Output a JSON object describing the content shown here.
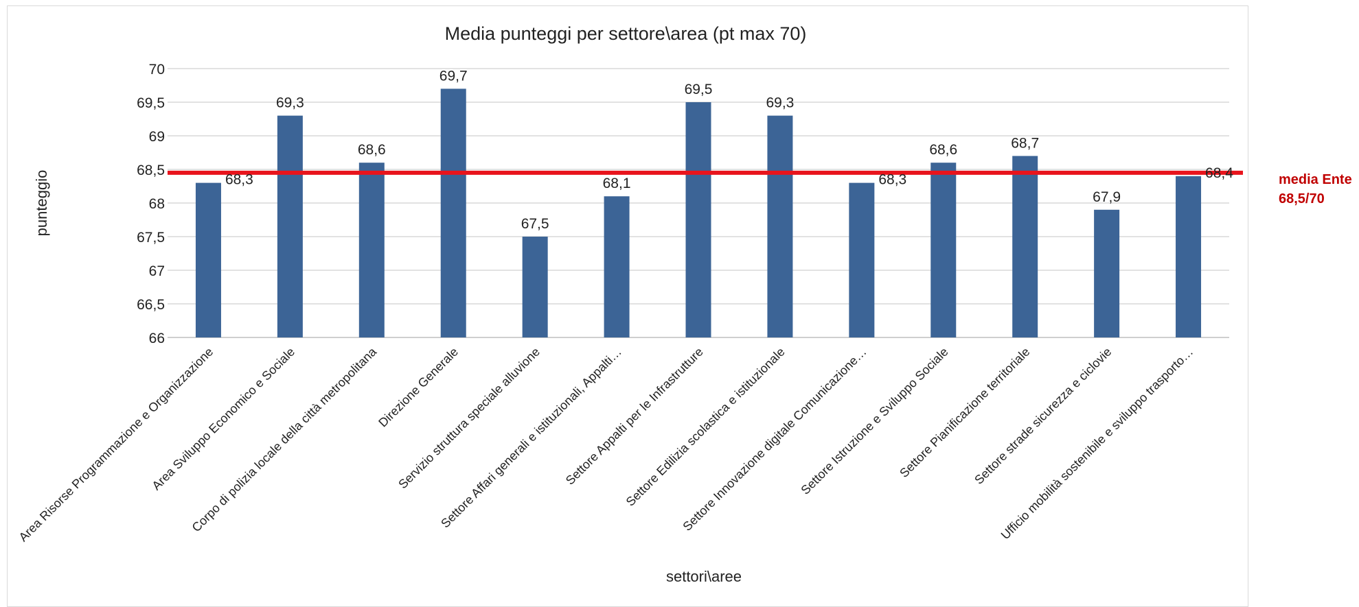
{
  "chart_data": {
    "type": "bar",
    "title": "Media punteggi per settore\\area (pt max 70)",
    "xlabel": "settori\\aree",
    "ylabel": "punteggio",
    "ylim": [
      66,
      70
    ],
    "yticks": [
      66,
      66.5,
      67,
      67.5,
      68,
      68.5,
      69,
      69.5,
      70
    ],
    "ytick_labels": [
      "66",
      "66,5",
      "67",
      "67,5",
      "68",
      "68,5",
      "69",
      "69,5",
      "70"
    ],
    "grid": true,
    "bar_color": "#3c6496",
    "categories": [
      "Area Risorse Programmazione e Organizzazione",
      "Area Sviluppo Economico e Sociale",
      "Corpo di polizia locale della città metropolitana",
      "Direzione Generale",
      "Servizio struttura speciale alluvione",
      "Settore Affari generali e istituzionali, Appalti…",
      "Settore Appalti per le Infrastrutture",
      "Settore Edilizia scolastica e istituzionale",
      "Settore Innovazione digitale Comunicazione…",
      "Settore Istruzione e Sviluppo Sociale",
      "Settore Pianificazione territoriale",
      "Settore strade sicurezza e ciclovie",
      "Ufficio mobilità sostenibile e sviluppo trasporto…"
    ],
    "values": [
      68.3,
      69.3,
      68.6,
      69.7,
      67.5,
      68.1,
      69.5,
      69.3,
      68.3,
      68.6,
      68.7,
      67.9,
      68.4
    ],
    "data_labels": [
      "68,3",
      "69,3",
      "68,6",
      "69,7",
      "67,5",
      "68,1",
      "69,5",
      "69,3",
      "68,3",
      "68,6",
      "68,7",
      "67,9",
      "68,4"
    ],
    "reference_line": {
      "value": 68.45,
      "color": "#e8141c",
      "label_line1": "media Ente",
      "label_line2": "68,5/70"
    }
  }
}
